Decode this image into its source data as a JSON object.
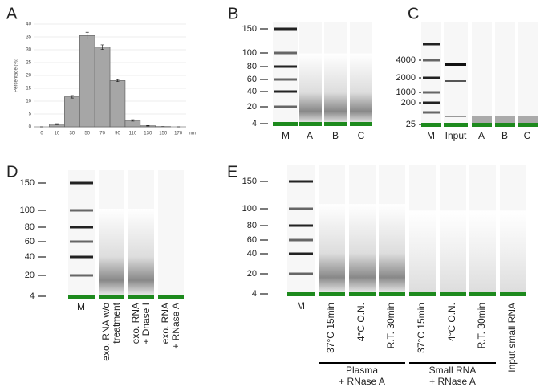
{
  "chart_data": {
    "type": "bar",
    "y_label": "Percentage (%)",
    "x_unit": "nm",
    "categories": [
      "0",
      "10",
      "30",
      "50",
      "70",
      "90",
      "110",
      "130",
      "150",
      "170"
    ],
    "values": [
      0,
      1,
      11.7,
      35.5,
      31,
      18,
      2.5,
      0.4,
      0.1,
      0
    ],
    "errors": [
      0,
      0.2,
      0.5,
      1.3,
      0.9,
      0.4,
      0.3,
      0.1,
      0,
      0
    ],
    "color": "#a6a6a6",
    "ylim": [
      0,
      40
    ],
    "yticks": [
      0,
      5,
      10,
      15,
      20,
      25,
      30,
      35,
      40
    ],
    "grid": true
  },
  "panel_letters": [
    "A",
    "B",
    "C",
    "D",
    "E"
  ],
  "gel_B": {
    "markers": [
      "150",
      "100",
      "80",
      "60",
      "40",
      "20",
      "4"
    ],
    "lanes": [
      "M",
      "A",
      "B",
      "C"
    ]
  },
  "gel_C": {
    "markers": [
      "4000",
      "2000",
      "1000",
      "200",
      "25"
    ],
    "lanes": [
      "M",
      "Input",
      "A",
      "B",
      "C"
    ]
  },
  "gel_D": {
    "markers": [
      "150",
      "100",
      "80",
      "60",
      "40",
      "20",
      "4"
    ],
    "lanes": [
      [
        "M"
      ],
      [
        "exo. RNA w/o",
        "treatment"
      ],
      [
        "exo. RNA",
        "+ Dnase I"
      ],
      [
        "exo. RNA",
        "+ RNase A"
      ]
    ]
  },
  "gel_E": {
    "markers": [
      "150",
      "100",
      "80",
      "60",
      "40",
      "20",
      "4"
    ],
    "lanes": [
      "M",
      "37°C 15min",
      "4°C O.N.",
      "R.T. 30min",
      "37°C 15min",
      "4°C O.N.",
      "R.T. 30min",
      "Input small RNA"
    ],
    "groups": [
      [
        "Plasma",
        "+ RNase A"
      ],
      [
        "Small RNA",
        "+ RNase A"
      ]
    ]
  }
}
